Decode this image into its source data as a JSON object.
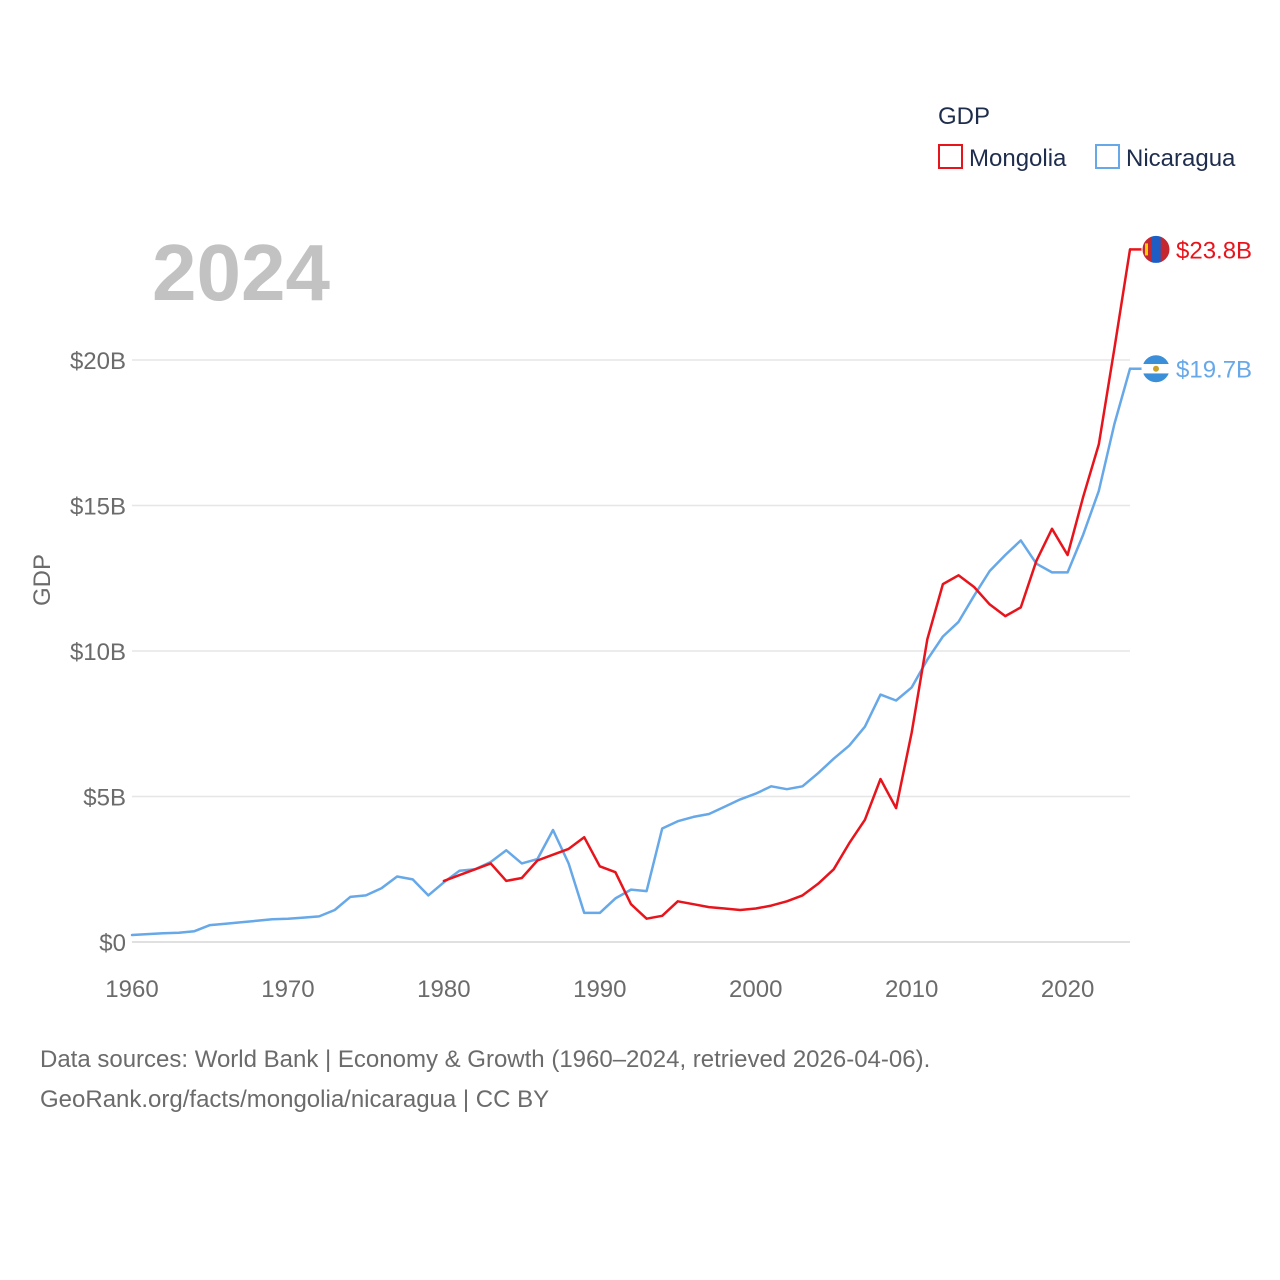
{
  "chart_data": {
    "type": "line",
    "title": "2024",
    "ylabel": "GDP",
    "xlabel": "",
    "legend_title": "GDP",
    "xlim": [
      1960,
      2024
    ],
    "ylim": [
      0,
      20
    ],
    "x_ticks": [
      1960,
      1970,
      1980,
      1990,
      2000,
      2010,
      2020
    ],
    "x_tick_labels": [
      "1960",
      "1970",
      "1980",
      "1990",
      "2000",
      "2010",
      "2020"
    ],
    "y_ticks": [
      0,
      5,
      10,
      15,
      20
    ],
    "y_tick_labels": [
      "$0",
      "$5B",
      "$10B",
      "$15B",
      "$20B"
    ],
    "units": "billion USD",
    "series": [
      {
        "name": "Mongolia",
        "color": "#e8141c",
        "end_label": "$23.8B",
        "flag": "mongolia-flag-icon",
        "x": [
          1980,
          1981,
          1982,
          1983,
          1984,
          1985,
          1986,
          1987,
          1988,
          1989,
          1990,
          1991,
          1992,
          1993,
          1994,
          1995,
          1996,
          1997,
          1998,
          1999,
          2000,
          2001,
          2002,
          2003,
          2004,
          2005,
          2006,
          2007,
          2008,
          2009,
          2010,
          2011,
          2012,
          2013,
          2014,
          2015,
          2016,
          2017,
          2018,
          2019,
          2020,
          2021,
          2022,
          2023,
          2024
        ],
        "values": [
          2.1,
          2.3,
          2.5,
          2.7,
          2.1,
          2.2,
          2.8,
          3.0,
          3.2,
          3.6,
          2.6,
          2.4,
          1.3,
          0.8,
          0.9,
          1.4,
          1.3,
          1.2,
          1.15,
          1.1,
          1.15,
          1.25,
          1.4,
          1.6,
          2.0,
          2.5,
          3.4,
          4.2,
          5.6,
          4.6,
          7.2,
          10.4,
          12.3,
          12.6,
          12.2,
          11.6,
          11.2,
          11.5,
          13.1,
          14.2,
          13.3,
          15.3,
          17.1,
          20.4,
          23.8
        ]
      },
      {
        "name": "Nicaragua",
        "color": "#66a8e8",
        "end_label": "$19.7B",
        "flag": "nicaragua-flag-icon",
        "x": [
          1960,
          1961,
          1962,
          1963,
          1964,
          1965,
          1966,
          1967,
          1968,
          1969,
          1970,
          1971,
          1972,
          1973,
          1974,
          1975,
          1976,
          1977,
          1978,
          1979,
          1980,
          1981,
          1982,
          1983,
          1984,
          1985,
          1986,
          1987,
          1988,
          1989,
          1990,
          1991,
          1992,
          1993,
          1994,
          1995,
          1996,
          1997,
          1998,
          1999,
          2000,
          2001,
          2002,
          2003,
          2004,
          2005,
          2006,
          2007,
          2008,
          2009,
          2010,
          2011,
          2012,
          2013,
          2014,
          2015,
          2016,
          2017,
          2018,
          2019,
          2020,
          2021,
          2022,
          2023,
          2024
        ],
        "values": [
          0.24,
          0.27,
          0.3,
          0.32,
          0.37,
          0.58,
          0.63,
          0.68,
          0.73,
          0.78,
          0.8,
          0.84,
          0.88,
          1.1,
          1.55,
          1.6,
          1.85,
          2.25,
          2.15,
          1.6,
          2.05,
          2.45,
          2.5,
          2.75,
          3.15,
          2.7,
          2.85,
          3.85,
          2.7,
          1.0,
          1.0,
          1.5,
          1.8,
          1.75,
          3.9,
          4.15,
          4.3,
          4.4,
          4.65,
          4.9,
          5.1,
          5.35,
          5.25,
          5.35,
          5.8,
          6.3,
          6.75,
          7.4,
          8.5,
          8.3,
          8.75,
          9.7,
          10.5,
          11.0,
          11.9,
          12.75,
          13.3,
          13.8,
          13.0,
          12.7,
          12.7,
          14.0,
          15.5,
          17.8,
          19.7
        ]
      }
    ]
  },
  "footer": {
    "line1": "Data sources: World Bank | Economy & Growth (1960–2024, retrieved 2026-04-06).",
    "line2": "GeoRank.org/facts/mongolia/nicaragua | CC BY"
  }
}
